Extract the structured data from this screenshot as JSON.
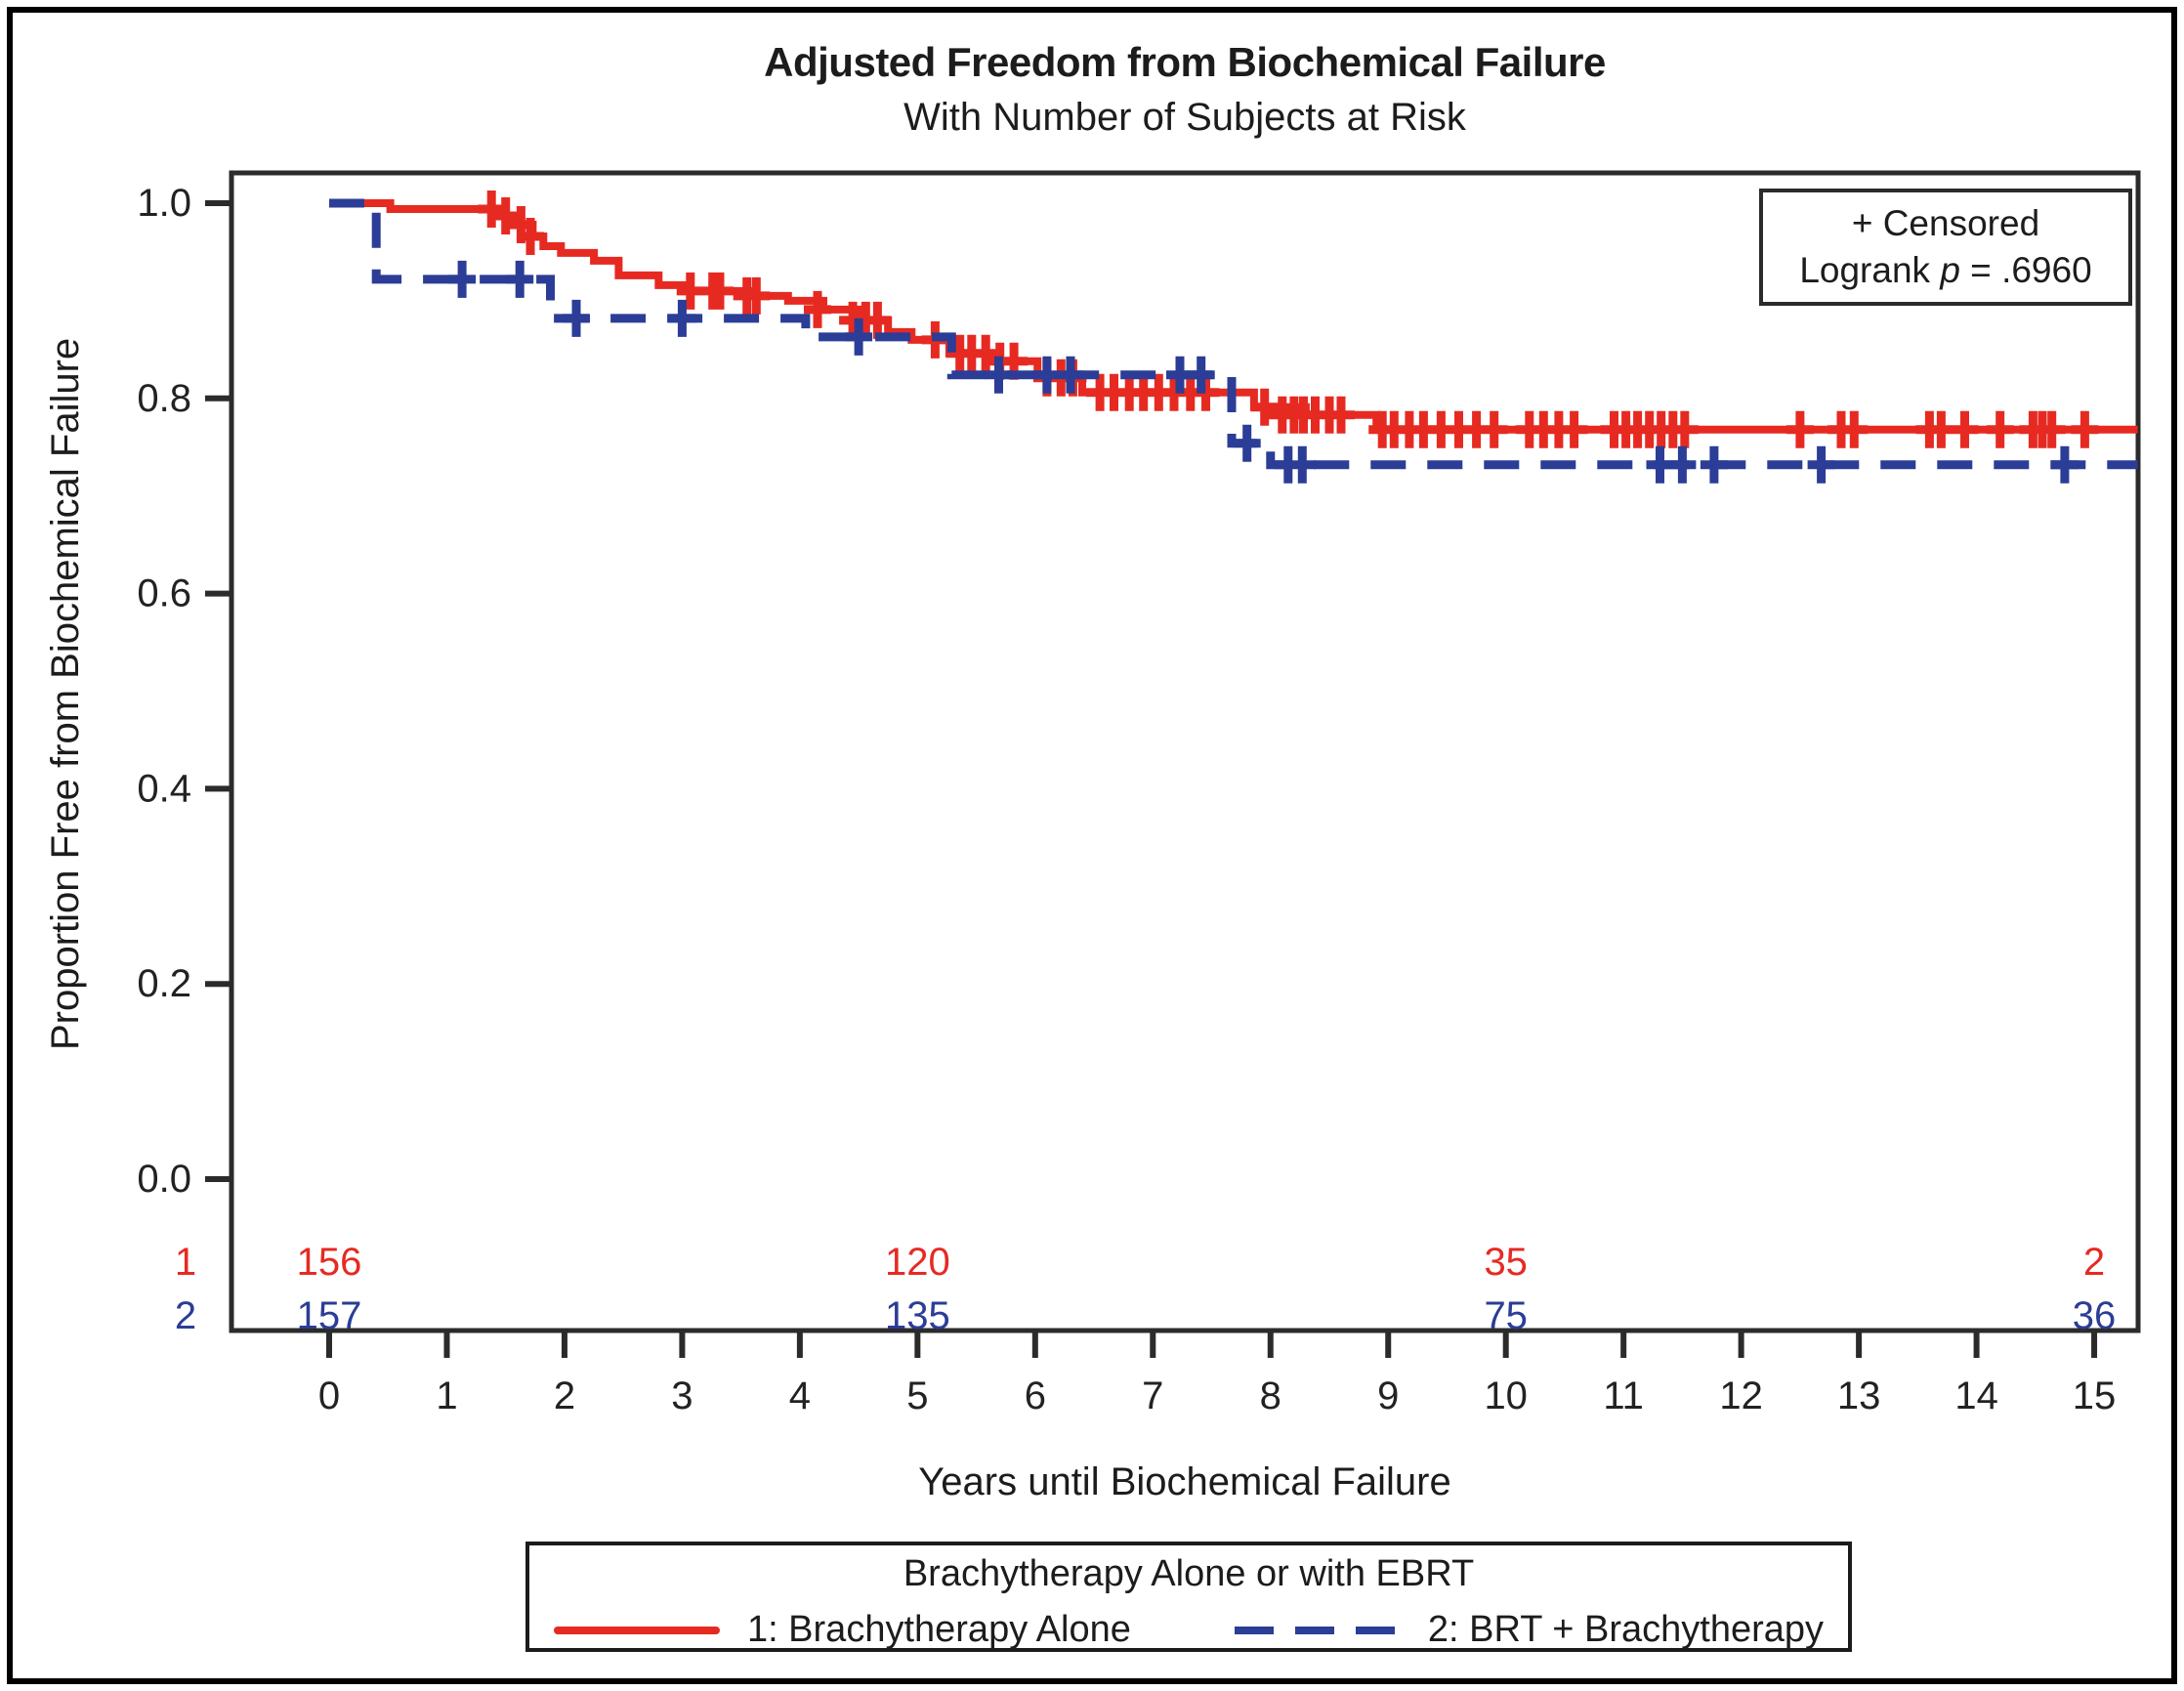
{
  "page": {
    "title": "Adjusted Freedom from Biochemical Failure",
    "subtitle": "With Number of Subjects at Risk"
  },
  "annotation": {
    "censored": "+ Censored",
    "logrank_prefix": "Logrank ",
    "logrank_symbol": "p",
    "logrank_value": " = .6960"
  },
  "axes": {
    "x_label": "Years until Biochemical Failure",
    "y_label": "Proportion Free from Biochemical Failure",
    "x_ticks": [
      0,
      1,
      2,
      3,
      4,
      5,
      6,
      7,
      8,
      9,
      10,
      11,
      12,
      13,
      14,
      15
    ],
    "y_ticks": [
      {
        "v": 1.0,
        "label": "1.0"
      },
      {
        "v": 0.8,
        "label": "0.8"
      },
      {
        "v": 0.6,
        "label": "0.6"
      },
      {
        "v": 0.4,
        "label": "0.4"
      },
      {
        "v": 0.2,
        "label": "0.2"
      },
      {
        "v": 0.0,
        "label": "0.0"
      }
    ]
  },
  "legend": {
    "title": "Brachytherapy Alone or with EBRT",
    "entries": [
      {
        "label": "1: Brachytherapy Alone",
        "color": "#e62a22",
        "style": "solid"
      },
      {
        "label": "2: BRT + Brachytherapy",
        "color": "#2b3d96",
        "style": "dashed"
      }
    ]
  },
  "colors": {
    "series1": "#e62a22",
    "series2": "#2b3d96",
    "frame": "#2b2b2b",
    "text": "#222222"
  },
  "at_risk": {
    "times": [
      0,
      5,
      10,
      15
    ],
    "rows": [
      {
        "label": "1",
        "color": "#e62a22",
        "values": [
          "156",
          "120",
          "35",
          "2"
        ]
      },
      {
        "label": "2",
        "color": "#2b3d96",
        "values": [
          "157",
          "135",
          "75",
          "36"
        ]
      }
    ]
  },
  "chart_data": {
    "type": "line",
    "subtype": "kaplan-meier-step",
    "title": "Adjusted Freedom from Biochemical Failure",
    "subtitle": "With Number of Subjects at Risk",
    "xlabel": "Years until Biochemical Failure",
    "ylabel": "Proportion Free from Biochemical Failure",
    "xlim": [
      0,
      15.4
    ],
    "ylim": [
      0.0,
      1.03
    ],
    "grid": false,
    "legend_position": "bottom",
    "logrank_p": ".6960",
    "series": [
      {
        "name": "1: Brachytherapy Alone",
        "color": "#e62a22",
        "style": "solid",
        "steps": [
          [
            0.0,
            1.0
          ],
          [
            0.52,
            0.994
          ],
          [
            1.42,
            0.987
          ],
          [
            1.55,
            0.978
          ],
          [
            1.73,
            0.966
          ],
          [
            1.82,
            0.956
          ],
          [
            1.97,
            0.949
          ],
          [
            2.25,
            0.941
          ],
          [
            2.46,
            0.926
          ],
          [
            2.8,
            0.916
          ],
          [
            3.05,
            0.91
          ],
          [
            3.6,
            0.905
          ],
          [
            3.9,
            0.9
          ],
          [
            4.2,
            0.891
          ],
          [
            4.5,
            0.88
          ],
          [
            4.75,
            0.868
          ],
          [
            4.95,
            0.86
          ],
          [
            5.27,
            0.846
          ],
          [
            5.6,
            0.838
          ],
          [
            6.02,
            0.821
          ],
          [
            6.4,
            0.806
          ],
          [
            7.86,
            0.791
          ],
          [
            8.3,
            0.783
          ],
          [
            8.9,
            0.768
          ]
        ],
        "end_time": 15.37,
        "censors": [
          [
            1.38,
            0.994
          ],
          [
            1.5,
            0.987
          ],
          [
            1.63,
            0.978
          ],
          [
            1.71,
            0.966
          ],
          [
            3.07,
            0.91
          ],
          [
            3.26,
            0.91
          ],
          [
            3.32,
            0.91
          ],
          [
            3.55,
            0.905
          ],
          [
            3.63,
            0.905
          ],
          [
            4.15,
            0.891
          ],
          [
            4.45,
            0.88
          ],
          [
            4.56,
            0.88
          ],
          [
            4.66,
            0.88
          ],
          [
            5.15,
            0.86
          ],
          [
            5.36,
            0.846
          ],
          [
            5.46,
            0.846
          ],
          [
            5.58,
            0.846
          ],
          [
            5.7,
            0.838
          ],
          [
            5.82,
            0.838
          ],
          [
            6.1,
            0.821
          ],
          [
            6.22,
            0.821
          ],
          [
            6.32,
            0.821
          ],
          [
            6.55,
            0.806
          ],
          [
            6.67,
            0.806
          ],
          [
            6.8,
            0.806
          ],
          [
            6.92,
            0.806
          ],
          [
            7.05,
            0.806
          ],
          [
            7.18,
            0.806
          ],
          [
            7.32,
            0.806
          ],
          [
            7.45,
            0.806
          ],
          [
            7.95,
            0.791
          ],
          [
            8.1,
            0.783
          ],
          [
            8.2,
            0.783
          ],
          [
            8.28,
            0.783
          ],
          [
            8.38,
            0.783
          ],
          [
            8.5,
            0.783
          ],
          [
            8.6,
            0.783
          ],
          [
            8.95,
            0.768
          ],
          [
            9.05,
            0.768
          ],
          [
            9.18,
            0.768
          ],
          [
            9.3,
            0.768
          ],
          [
            9.45,
            0.768
          ],
          [
            9.6,
            0.768
          ],
          [
            9.75,
            0.768
          ],
          [
            9.9,
            0.768
          ],
          [
            10.2,
            0.768
          ],
          [
            10.32,
            0.768
          ],
          [
            10.45,
            0.768
          ],
          [
            10.58,
            0.768
          ],
          [
            10.92,
            0.768
          ],
          [
            11.02,
            0.768
          ],
          [
            11.12,
            0.768
          ],
          [
            11.22,
            0.768
          ],
          [
            11.32,
            0.768
          ],
          [
            11.42,
            0.768
          ],
          [
            11.52,
            0.768
          ],
          [
            12.5,
            0.768
          ],
          [
            12.85,
            0.768
          ],
          [
            12.96,
            0.768
          ],
          [
            13.6,
            0.768
          ],
          [
            13.7,
            0.768
          ],
          [
            13.9,
            0.768
          ],
          [
            14.2,
            0.768
          ],
          [
            14.48,
            0.768
          ],
          [
            14.56,
            0.768
          ],
          [
            14.64,
            0.768
          ],
          [
            14.92,
            0.768
          ]
        ]
      },
      {
        "name": "2: BRT + Brachytherapy",
        "color": "#2b3d96",
        "style": "dashed",
        "steps": [
          [
            0.0,
            1.0
          ],
          [
            0.4,
            0.922
          ],
          [
            1.88,
            0.882
          ],
          [
            4.05,
            0.863
          ],
          [
            5.29,
            0.824
          ],
          [
            7.67,
            0.754
          ],
          [
            8.0,
            0.732
          ]
        ],
        "end_time": 15.37,
        "censors": [
          [
            1.13,
            0.922
          ],
          [
            1.62,
            0.922
          ],
          [
            2.1,
            0.882
          ],
          [
            3.0,
            0.882
          ],
          [
            4.5,
            0.863
          ],
          [
            5.69,
            0.824
          ],
          [
            6.1,
            0.824
          ],
          [
            6.3,
            0.824
          ],
          [
            7.23,
            0.824
          ],
          [
            7.41,
            0.824
          ],
          [
            7.8,
            0.754
          ],
          [
            8.15,
            0.732
          ],
          [
            8.27,
            0.732
          ],
          [
            11.31,
            0.732
          ],
          [
            11.5,
            0.732
          ],
          [
            11.77,
            0.732
          ],
          [
            12.68,
            0.732
          ],
          [
            14.75,
            0.732
          ]
        ]
      }
    ],
    "at_risk_table": {
      "times": [
        0,
        5,
        10,
        15
      ],
      "rows": [
        {
          "group": "1",
          "values": [
            156,
            120,
            35,
            2
          ]
        },
        {
          "group": "2",
          "values": [
            157,
            135,
            75,
            36
          ]
        }
      ]
    }
  }
}
